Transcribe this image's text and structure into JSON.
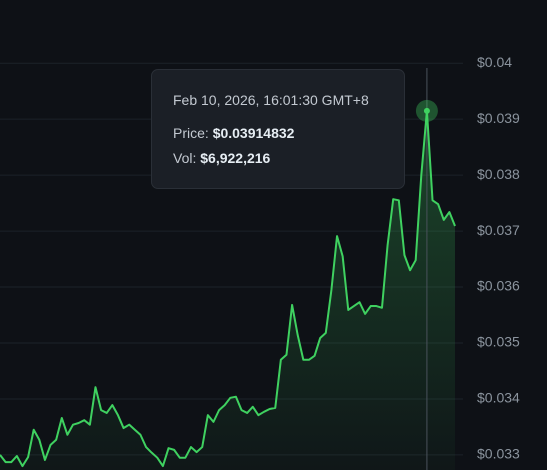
{
  "chart_data": {
    "type": "line",
    "values": [
      0.033,
      0.03287,
      0.03287,
      0.03298,
      0.0328,
      0.03296,
      0.03345,
      0.03327,
      0.03291,
      0.03318,
      0.03327,
      0.03366,
      0.03336,
      0.03354,
      0.03357,
      0.03362,
      0.03354,
      0.03421,
      0.0338,
      0.03375,
      0.03389,
      0.03371,
      0.03348,
      0.03354,
      0.03345,
      0.03336,
      0.03314,
      0.03304,
      0.03295,
      0.0328,
      0.03312,
      0.03309,
      0.03295,
      0.03295,
      0.03314,
      0.03305,
      0.03314,
      0.03371,
      0.03359,
      0.0338,
      0.03389,
      0.03402,
      0.03404,
      0.0338,
      0.03375,
      0.03386,
      0.03371,
      0.03377,
      0.03382,
      0.03384,
      0.0347,
      0.03479,
      0.03568,
      0.03514,
      0.0347,
      0.0347,
      0.03477,
      0.03509,
      0.03518,
      0.03595,
      0.03691,
      0.03655,
      0.03559,
      0.03566,
      0.03573,
      0.03552,
      0.03566,
      0.03566,
      0.03563,
      0.03675,
      0.03757,
      0.03755,
      0.03657,
      0.0363,
      0.03648,
      0.038,
      0.03914832,
      0.03755,
      0.03748,
      0.0372,
      0.03734,
      0.03709
    ],
    "color": "#3fd160",
    "ylim": [
      0.03273,
      0.04113
    ],
    "yticks": [
      {
        "value": 0.033,
        "label": "$0.033"
      },
      {
        "value": 0.034,
        "label": "$0.034"
      },
      {
        "value": 0.035,
        "label": "$0.035"
      },
      {
        "value": 0.036,
        "label": "$0.036"
      },
      {
        "value": 0.037,
        "label": "$0.037"
      },
      {
        "value": 0.038,
        "label": "$0.038"
      },
      {
        "value": 0.039,
        "label": "$0.039"
      },
      {
        "value": 0.04,
        "label": "$0.04"
      }
    ],
    "grid": true,
    "tooltip": {
      "time": "Feb 10, 2026, 16:01:30 GMT+8",
      "price_label": "Price:",
      "price": "$0.03914832",
      "vol_label": "Vol:",
      "vol": "$6,922,216"
    }
  }
}
